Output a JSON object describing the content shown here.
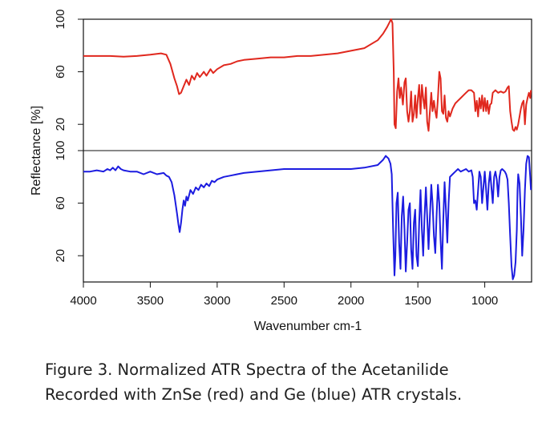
{
  "chart_data": {
    "type": "line",
    "title": "",
    "xlabel": "Wavenumber cm-1",
    "ylabel": "Reflectance [%]",
    "xlim": [
      4000,
      650
    ],
    "x_reversed": true,
    "x_ticks": [
      "4000",
      "3500",
      "3000",
      "2500",
      "2000",
      "1500",
      "1000"
    ],
    "panels": [
      {
        "name": "top",
        "ylim": [
          0,
          100
        ],
        "y_ticks": [
          "20",
          "60",
          "100"
        ]
      },
      {
        "name": "bottom",
        "ylim": [
          0,
          100
        ],
        "y_ticks": [
          "20",
          "60",
          "100"
        ]
      }
    ],
    "grid": false,
    "legend": "none",
    "series": [
      {
        "color": "#e0281e",
        "panel": "top",
        "points": [
          [
            4000,
            72
          ],
          [
            3900,
            72
          ],
          [
            3800,
            72
          ],
          [
            3700,
            71.5
          ],
          [
            3600,
            72
          ],
          [
            3500,
            73
          ],
          [
            3420,
            74
          ],
          [
            3380,
            73
          ],
          [
            3350,
            66
          ],
          [
            3320,
            55
          ],
          [
            3300,
            49
          ],
          [
            3285,
            43
          ],
          [
            3270,
            44
          ],
          [
            3250,
            49
          ],
          [
            3230,
            54
          ],
          [
            3210,
            50
          ],
          [
            3190,
            57
          ],
          [
            3170,
            54
          ],
          [
            3150,
            59
          ],
          [
            3130,
            56
          ],
          [
            3100,
            60
          ],
          [
            3080,
            57
          ],
          [
            3050,
            62
          ],
          [
            3030,
            59
          ],
          [
            3000,
            62
          ],
          [
            2950,
            65
          ],
          [
            2900,
            66
          ],
          [
            2850,
            68
          ],
          [
            2800,
            69
          ],
          [
            2700,
            70
          ],
          [
            2600,
            71
          ],
          [
            2500,
            71
          ],
          [
            2400,
            72
          ],
          [
            2300,
            72
          ],
          [
            2200,
            73
          ],
          [
            2100,
            74
          ],
          [
            2000,
            76
          ],
          [
            1900,
            78
          ],
          [
            1800,
            84
          ],
          [
            1760,
            89
          ],
          [
            1730,
            94
          ],
          [
            1710,
            98
          ],
          [
            1700,
            100
          ],
          [
            1690,
            97
          ],
          [
            1680,
            60
          ],
          [
            1675,
            20
          ],
          [
            1665,
            17
          ],
          [
            1655,
            45
          ],
          [
            1645,
            55
          ],
          [
            1635,
            40
          ],
          [
            1625,
            48
          ],
          [
            1612,
            35
          ],
          [
            1600,
            52
          ],
          [
            1590,
            55
          ],
          [
            1580,
            30
          ],
          [
            1570,
            22
          ],
          [
            1560,
            30
          ],
          [
            1550,
            45
          ],
          [
            1540,
            22
          ],
          [
            1530,
            28
          ],
          [
            1520,
            42
          ],
          [
            1510,
            25
          ],
          [
            1500,
            40
          ],
          [
            1490,
            50
          ],
          [
            1480,
            28
          ],
          [
            1470,
            50
          ],
          [
            1460,
            40
          ],
          [
            1450,
            32
          ],
          [
            1440,
            48
          ],
          [
            1430,
            22
          ],
          [
            1420,
            15
          ],
          [
            1410,
            30
          ],
          [
            1400,
            44
          ],
          [
            1390,
            30
          ],
          [
            1380,
            38
          ],
          [
            1370,
            30
          ],
          [
            1360,
            25
          ],
          [
            1350,
            40
          ],
          [
            1340,
            60
          ],
          [
            1330,
            55
          ],
          [
            1320,
            30
          ],
          [
            1310,
            28
          ],
          [
            1300,
            42
          ],
          [
            1290,
            25
          ],
          [
            1280,
            22
          ],
          [
            1270,
            30
          ],
          [
            1260,
            26
          ],
          [
            1240,
            32
          ],
          [
            1220,
            36
          ],
          [
            1200,
            38
          ],
          [
            1180,
            40
          ],
          [
            1160,
            42
          ],
          [
            1140,
            44
          ],
          [
            1120,
            46
          ],
          [
            1100,
            46
          ],
          [
            1080,
            44
          ],
          [
            1070,
            30
          ],
          [
            1060,
            38
          ],
          [
            1050,
            26
          ],
          [
            1040,
            40
          ],
          [
            1030,
            32
          ],
          [
            1020,
            42
          ],
          [
            1010,
            30
          ],
          [
            1000,
            40
          ],
          [
            990,
            30
          ],
          [
            980,
            38
          ],
          [
            970,
            28
          ],
          [
            960,
            35
          ],
          [
            950,
            36
          ],
          [
            940,
            44
          ],
          [
            920,
            46
          ],
          [
            900,
            44
          ],
          [
            880,
            45
          ],
          [
            860,
            44
          ],
          [
            845,
            45
          ],
          [
            830,
            48
          ],
          [
            820,
            49
          ],
          [
            810,
            30
          ],
          [
            800,
            22
          ],
          [
            790,
            16
          ],
          [
            780,
            15
          ],
          [
            770,
            18
          ],
          [
            760,
            16
          ],
          [
            750,
            20
          ],
          [
            740,
            26
          ],
          [
            730,
            32
          ],
          [
            720,
            36
          ],
          [
            710,
            38
          ],
          [
            700,
            20
          ],
          [
            690,
            35
          ],
          [
            680,
            40
          ],
          [
            670,
            44
          ],
          [
            660,
            40
          ],
          [
            655,
            46
          ]
        ]
      },
      {
        "color": "#1c1ce0",
        "panel": "bottom",
        "points": [
          [
            4000,
            84
          ],
          [
            3950,
            84
          ],
          [
            3900,
            85
          ],
          [
            3850,
            84
          ],
          [
            3820,
            86
          ],
          [
            3800,
            85
          ],
          [
            3780,
            87
          ],
          [
            3760,
            85
          ],
          [
            3740,
            88
          ],
          [
            3720,
            86
          ],
          [
            3700,
            85
          ],
          [
            3650,
            84
          ],
          [
            3600,
            84
          ],
          [
            3550,
            82
          ],
          [
            3500,
            84
          ],
          [
            3450,
            82
          ],
          [
            3400,
            83
          ],
          [
            3380,
            81
          ],
          [
            3360,
            80
          ],
          [
            3340,
            76
          ],
          [
            3320,
            66
          ],
          [
            3300,
            52
          ],
          [
            3290,
            44
          ],
          [
            3280,
            38
          ],
          [
            3270,
            45
          ],
          [
            3260,
            55
          ],
          [
            3250,
            62
          ],
          [
            3240,
            58
          ],
          [
            3230,
            65
          ],
          [
            3220,
            62
          ],
          [
            3200,
            70
          ],
          [
            3180,
            67
          ],
          [
            3160,
            72
          ],
          [
            3140,
            70
          ],
          [
            3120,
            74
          ],
          [
            3100,
            72
          ],
          [
            3080,
            75
          ],
          [
            3060,
            73
          ],
          [
            3040,
            77
          ],
          [
            3020,
            76
          ],
          [
            3000,
            78
          ],
          [
            2950,
            80
          ],
          [
            2900,
            81
          ],
          [
            2850,
            82
          ],
          [
            2800,
            83
          ],
          [
            2700,
            84
          ],
          [
            2600,
            85
          ],
          [
            2500,
            86
          ],
          [
            2400,
            86
          ],
          [
            2300,
            86
          ],
          [
            2200,
            86
          ],
          [
            2100,
            86
          ],
          [
            2000,
            86
          ],
          [
            1900,
            87
          ],
          [
            1800,
            89
          ],
          [
            1760,
            93
          ],
          [
            1740,
            96
          ],
          [
            1720,
            94
          ],
          [
            1705,
            90
          ],
          [
            1695,
            82
          ],
          [
            1685,
            40
          ],
          [
            1675,
            5
          ],
          [
            1668,
            20
          ],
          [
            1660,
            60
          ],
          [
            1650,
            68
          ],
          [
            1640,
            30
          ],
          [
            1630,
            10
          ],
          [
            1620,
            50
          ],
          [
            1610,
            65
          ],
          [
            1600,
            40
          ],
          [
            1590,
            8
          ],
          [
            1580,
            30
          ],
          [
            1570,
            55
          ],
          [
            1560,
            60
          ],
          [
            1550,
            25
          ],
          [
            1540,
            10
          ],
          [
            1530,
            45
          ],
          [
            1520,
            55
          ],
          [
            1510,
            20
          ],
          [
            1500,
            12
          ],
          [
            1490,
            45
          ],
          [
            1480,
            70
          ],
          [
            1470,
            40
          ],
          [
            1460,
            20
          ],
          [
            1450,
            50
          ],
          [
            1440,
            72
          ],
          [
            1430,
            50
          ],
          [
            1420,
            25
          ],
          [
            1410,
            50
          ],
          [
            1400,
            74
          ],
          [
            1390,
            60
          ],
          [
            1380,
            35
          ],
          [
            1370,
            22
          ],
          [
            1360,
            50
          ],
          [
            1350,
            74
          ],
          [
            1340,
            60
          ],
          [
            1330,
            32
          ],
          [
            1320,
            10
          ],
          [
            1310,
            48
          ],
          [
            1300,
            76
          ],
          [
            1290,
            55
          ],
          [
            1280,
            30
          ],
          [
            1270,
            60
          ],
          [
            1260,
            80
          ],
          [
            1240,
            82
          ],
          [
            1220,
            84
          ],
          [
            1200,
            86
          ],
          [
            1180,
            84
          ],
          [
            1160,
            85
          ],
          [
            1140,
            86
          ],
          [
            1120,
            84
          ],
          [
            1100,
            85
          ],
          [
            1090,
            80
          ],
          [
            1080,
            60
          ],
          [
            1070,
            62
          ],
          [
            1060,
            55
          ],
          [
            1050,
            70
          ],
          [
            1040,
            84
          ],
          [
            1030,
            80
          ],
          [
            1020,
            60
          ],
          [
            1010,
            72
          ],
          [
            1000,
            84
          ],
          [
            990,
            70
          ],
          [
            980,
            55
          ],
          [
            970,
            75
          ],
          [
            960,
            84
          ],
          [
            950,
            72
          ],
          [
            940,
            60
          ],
          [
            930,
            80
          ],
          [
            920,
            84
          ],
          [
            910,
            78
          ],
          [
            900,
            65
          ],
          [
            890,
            80
          ],
          [
            880,
            85
          ],
          [
            870,
            86
          ],
          [
            860,
            85
          ],
          [
            850,
            84
          ],
          [
            840,
            82
          ],
          [
            830,
            78
          ],
          [
            820,
            60
          ],
          [
            810,
            35
          ],
          [
            800,
            12
          ],
          [
            790,
            2
          ],
          [
            780,
            5
          ],
          [
            770,
            15
          ],
          [
            760,
            40
          ],
          [
            755,
            70
          ],
          [
            750,
            82
          ],
          [
            740,
            75
          ],
          [
            730,
            50
          ],
          [
            720,
            20
          ],
          [
            710,
            40
          ],
          [
            700,
            70
          ],
          [
            690,
            90
          ],
          [
            680,
            96
          ],
          [
            670,
            95
          ],
          [
            660,
            80
          ],
          [
            655,
            70
          ]
        ]
      }
    ]
  },
  "caption": {
    "line1": "Figure 3. Normalized ATR Spectra of the Acetanilide",
    "line2": "Recorded with ZnSe (red) and Ge (blue) ATR crystals."
  }
}
